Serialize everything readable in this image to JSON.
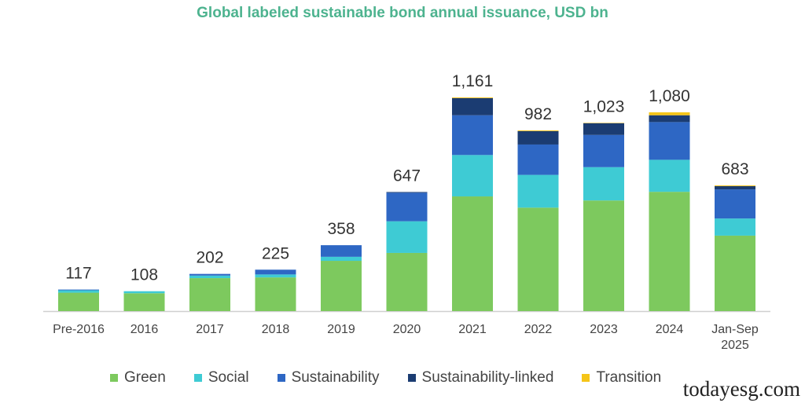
{
  "chart_data": {
    "type": "bar",
    "stacked": true,
    "title": "Global labeled sustainable bond annual issuance, USD bn",
    "xlabel": "",
    "ylabel": "",
    "ylim": [
      0,
      1200
    ],
    "grid": false,
    "legend_position": "bottom",
    "categories": [
      "Pre-2016",
      "2016",
      "2017",
      "2018",
      "2019",
      "2020",
      "2021",
      "2022",
      "2023",
      "2024",
      "Jan-Sep 2025"
    ],
    "totals": [
      "117",
      "108",
      "202",
      "225",
      "358",
      "647",
      "1,161",
      "982",
      "1,023",
      "1,080",
      "683"
    ],
    "series": [
      {
        "name": "Green",
        "color": "#7DC95E",
        "values": [
          100,
          97,
          179,
          183,
          273,
          316,
          623,
          562,
          601,
          648,
          410
        ]
      },
      {
        "name": "Social",
        "color": "#3ECBD4",
        "values": [
          13,
          11,
          14,
          16,
          22,
          172,
          225,
          178,
          181,
          174,
          93
        ]
      },
      {
        "name": "Sustainability",
        "color": "#2E67C4",
        "values": [
          4,
          0,
          9,
          26,
          63,
          155,
          216,
          165,
          175,
          205,
          158
        ]
      },
      {
        "name": "Sustainability-linked",
        "color": "#1B3C72",
        "values": [
          0,
          0,
          0,
          0,
          0,
          4,
          93,
          73,
          64,
          37,
          18
        ]
      },
      {
        "name": "Transition",
        "color": "#F5C518",
        "values": [
          0,
          0,
          0,
          0,
          0,
          0,
          4,
          4,
          2,
          16,
          4
        ]
      }
    ]
  },
  "watermark": "todayesg.com"
}
